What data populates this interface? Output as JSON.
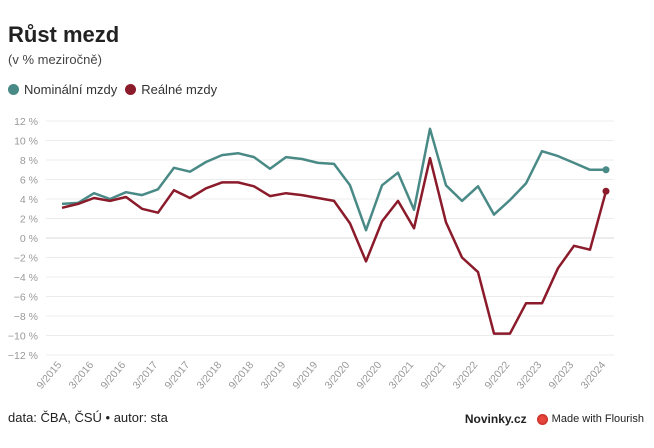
{
  "header": {
    "title": "Růst mezd",
    "subtitle": "(v % meziročně)"
  },
  "legend": [
    {
      "label": "Nominální mzdy",
      "color": "#4a8a86"
    },
    {
      "label": "Reálné mzdy",
      "color": "#8b1a2b"
    }
  ],
  "footer": {
    "source": "data: ČBA, ČSÚ • autor: sta",
    "brand": "Novinky.cz",
    "flourish": "Made with Flourish"
  },
  "chart_data": {
    "type": "line",
    "title": "Růst mezd",
    "subtitle": "(v % meziročně)",
    "xlabel": "",
    "ylabel": "",
    "ylim": [
      -12,
      12
    ],
    "yticks": [
      12,
      10,
      8,
      6,
      4,
      2,
      0,
      -2,
      -4,
      -6,
      -8,
      -10,
      -12
    ],
    "ytick_labels": [
      "12 %",
      "10 %",
      "8 %",
      "6 %",
      "4 %",
      "2 %",
      "0 %",
      "−2 %",
      "−4 %",
      "−6 %",
      "−8 %",
      "−10 %",
      "−12 %"
    ],
    "x": [
      "9/2015",
      "12/2015",
      "3/2016",
      "6/2016",
      "9/2016",
      "12/2016",
      "3/2017",
      "6/2017",
      "9/2017",
      "12/2017",
      "3/2018",
      "6/2018",
      "9/2018",
      "12/2018",
      "3/2019",
      "6/2019",
      "9/2019",
      "12/2019",
      "3/2020",
      "6/2020",
      "9/2020",
      "12/2020",
      "3/2021",
      "6/2021",
      "9/2021",
      "12/2021",
      "3/2022",
      "6/2022",
      "9/2022",
      "12/2022",
      "3/2023",
      "6/2023",
      "9/2023",
      "12/2023",
      "3/2024"
    ],
    "x_tick_labels": [
      "9/2015",
      "3/2016",
      "9/2016",
      "3/2017",
      "9/2017",
      "3/2018",
      "9/2018",
      "3/2019",
      "9/2019",
      "3/2020",
      "9/2020",
      "3/2021",
      "9/2021",
      "3/2022",
      "9/2022",
      "3/2023",
      "9/2023",
      "3/2024"
    ],
    "series": [
      {
        "name": "Nominální mzdy",
        "color": "#4a8a86",
        "values": [
          3.5,
          3.6,
          4.6,
          4.0,
          4.7,
          4.4,
          5.0,
          7.2,
          6.8,
          7.8,
          8.5,
          8.7,
          8.3,
          7.1,
          8.3,
          8.1,
          7.7,
          7.6,
          5.4,
          0.8,
          5.4,
          6.7,
          2.9,
          11.2,
          5.4,
          3.8,
          5.3,
          2.4,
          3.9,
          5.6,
          8.9,
          8.4,
          7.7,
          7.0,
          7.0
        ]
      },
      {
        "name": "Reálné mzdy",
        "color": "#8b1a2b",
        "values": [
          3.1,
          3.5,
          4.1,
          3.8,
          4.2,
          3.0,
          2.6,
          4.9,
          4.1,
          5.1,
          5.7,
          5.7,
          5.3,
          4.3,
          4.6,
          4.4,
          4.1,
          3.8,
          1.5,
          -2.4,
          1.7,
          3.8,
          1.0,
          8.2,
          1.6,
          -2.0,
          -3.5,
          -9.8,
          -9.8,
          -6.7,
          -6.7,
          -3.1,
          -0.8,
          -1.2,
          4.8
        ]
      }
    ]
  }
}
